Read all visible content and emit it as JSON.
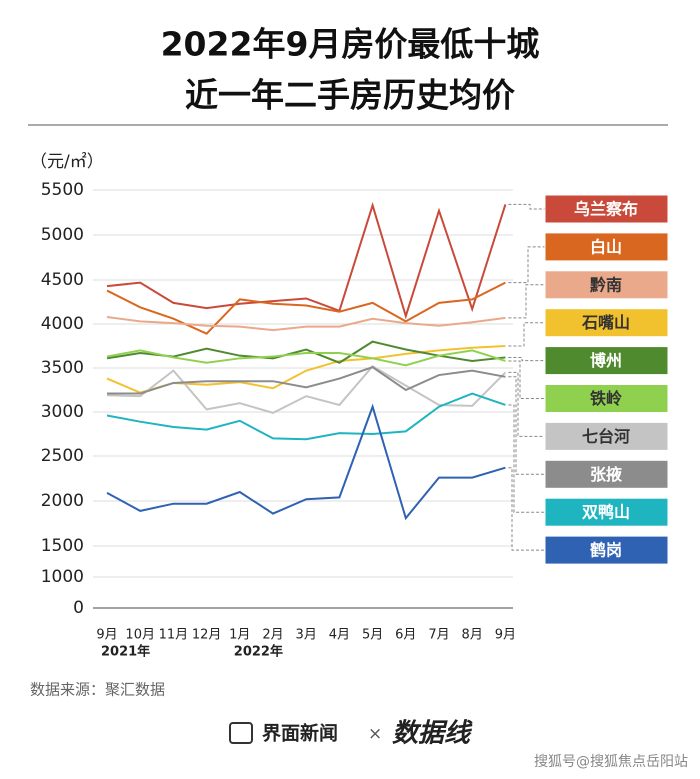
{
  "chart_data": {
    "type": "line",
    "title_lines": [
      "2022年9月房价最低十城",
      "近一年二手房历史均价"
    ],
    "y_unit": "（元/㎡）",
    "categories": [
      "9月",
      "10月",
      "11月",
      "12月",
      "1月",
      "2月",
      "3月",
      "4月",
      "5月",
      "6月",
      "7月",
      "8月",
      "9月"
    ],
    "year_labels": [
      "2021年",
      null,
      null,
      null,
      "2022年",
      null,
      null,
      null,
      null,
      null,
      null,
      null,
      null
    ],
    "ylim": [
      0,
      5500
    ],
    "yticks": [
      0,
      1000,
      1500,
      2000,
      2500,
      3000,
      3500,
      4000,
      4500,
      5000,
      5500
    ],
    "grid": true,
    "series": [
      {
        "name": "乌兰察布",
        "color": "#c94a3a",
        "values": [
          4430,
          4470,
          4240,
          4180,
          4230,
          4260,
          4290,
          4150,
          5330,
          4090,
          5270,
          4170,
          5340
        ]
      },
      {
        "name": "白山",
        "color": "#d9671f",
        "values": [
          4380,
          4190,
          4060,
          3890,
          4280,
          4230,
          4210,
          4140,
          4240,
          4030,
          4240,
          4280,
          4470
        ]
      },
      {
        "name": "黔南",
        "color": "#e9a98a",
        "values": [
          4080,
          4030,
          4010,
          3980,
          3970,
          3930,
          3970,
          3970,
          4060,
          4010,
          3980,
          4020,
          4070
        ]
      },
      {
        "name": "石嘴山",
        "color": "#f2c12e",
        "values": [
          3380,
          3220,
          3330,
          3310,
          3340,
          3270,
          3470,
          3580,
          3610,
          3660,
          3700,
          3730,
          3750
        ]
      },
      {
        "name": "博州",
        "color": "#4f8a2f",
        "values": [
          3610,
          3670,
          3630,
          3720,
          3640,
          3610,
          3710,
          3560,
          3800,
          3710,
          3640,
          3580,
          3620
        ]
      },
      {
        "name": "铁岭",
        "color": "#8fd14f",
        "values": [
          3630,
          3700,
          3620,
          3560,
          3610,
          3630,
          3670,
          3670,
          3610,
          3530,
          3640,
          3700,
          3580
        ]
      },
      {
        "name": "七台河",
        "color": "#c4c4c4",
        "values": [
          3190,
          3180,
          3470,
          3030,
          3100,
          2990,
          3180,
          3080,
          3520,
          3300,
          3080,
          3070,
          3450
        ]
      },
      {
        "name": "张掖",
        "color": "#8c8c8c",
        "values": [
          3210,
          3210,
          3330,
          3350,
          3350,
          3350,
          3280,
          3380,
          3510,
          3250,
          3420,
          3470,
          3400
        ]
      },
      {
        "name": "双鸭山",
        "color": "#1fb5c0",
        "values": [
          2960,
          2890,
          2830,
          2800,
          2900,
          2700,
          2690,
          2760,
          2750,
          2780,
          3060,
          3210,
          3080
        ]
      },
      {
        "name": "鹤岗",
        "color": "#2f62b3",
        "values": [
          2090,
          1890,
          1970,
          1970,
          2100,
          1860,
          2020,
          2040,
          3060,
          1810,
          2260,
          2260,
          2370
        ]
      }
    ],
    "source": "数据来源：聚汇数据"
  },
  "footer": {
    "brand": "界面新闻",
    "cross": "×",
    "partner": "数据线",
    "watermark": "搜狐号@搜狐焦点岳阳站"
  }
}
